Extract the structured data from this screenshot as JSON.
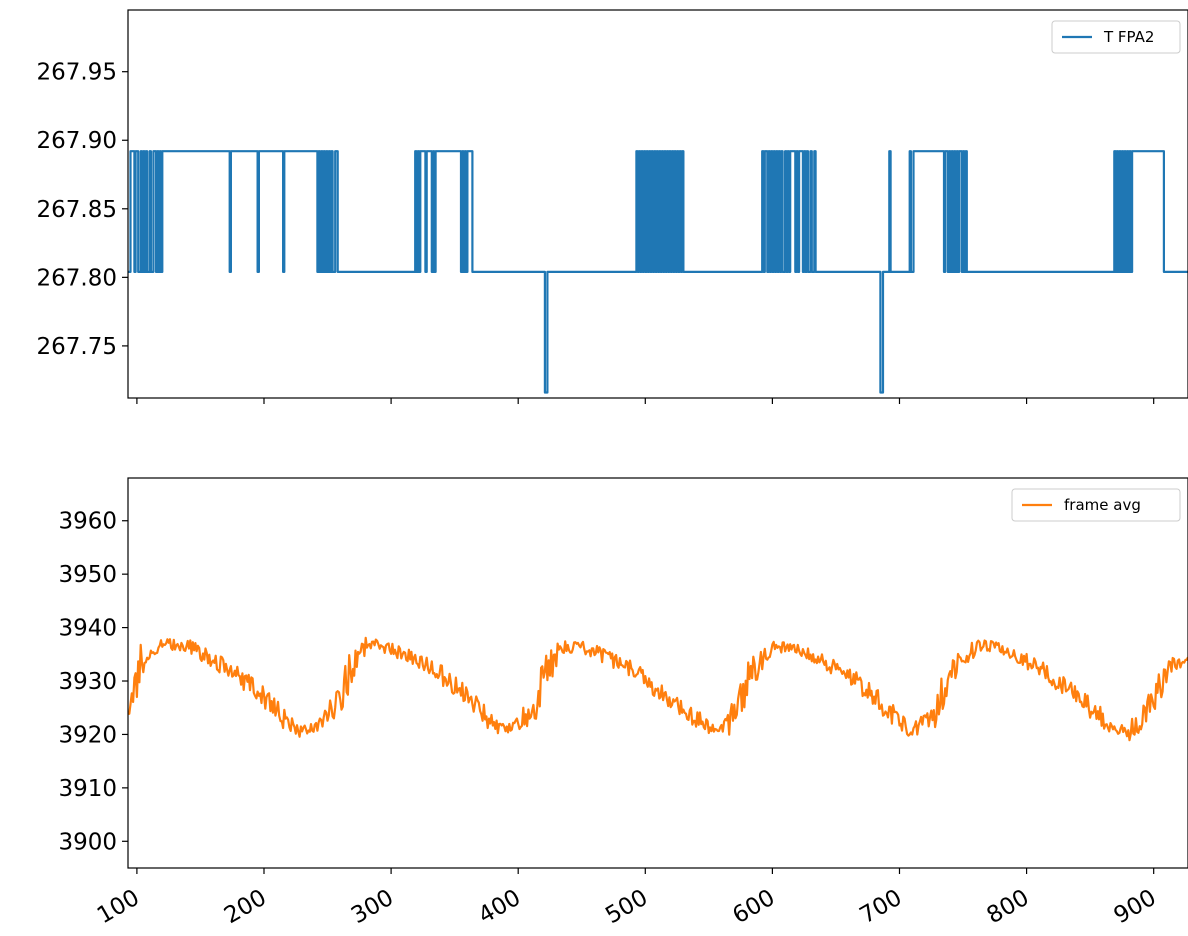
{
  "chart_data": [
    {
      "type": "line",
      "title": "",
      "xlabel": "",
      "ylabel": "",
      "xlim": [
        93,
        927
      ],
      "ylim": [
        267.712,
        267.995
      ],
      "yticks": [
        267.75,
        267.8,
        267.85,
        267.9,
        267.95
      ],
      "ytick_labels": [
        "267.75",
        "267.80",
        "267.85",
        "267.90",
        "267.95"
      ],
      "xticks": [
        100,
        200,
        300,
        400,
        500,
        600,
        700,
        800,
        900
      ],
      "show_x_tick_labels": false,
      "grid": false,
      "legend": "top-right",
      "series": [
        {
          "name": "T FPA2",
          "color": "#1f77b4",
          "levels": [
            267.716,
            267.804,
            267.892
          ],
          "x_start": 93,
          "x_end": 927,
          "segments": [
            [
              93,
              1
            ],
            [
              95,
              2
            ],
            [
              98,
              1
            ],
            [
              99,
              2
            ],
            [
              101,
              1
            ],
            [
              103,
              2
            ],
            [
              104,
              1
            ],
            [
              105,
              2
            ],
            [
              106,
              1
            ],
            [
              107,
              2
            ],
            [
              108,
              1
            ],
            [
              110,
              2
            ],
            [
              111,
              1
            ],
            [
              113,
              2
            ],
            [
              115,
              1
            ],
            [
              116,
              2
            ],
            [
              117,
              1
            ],
            [
              118,
              2
            ],
            [
              119,
              1
            ],
            [
              120,
              2
            ],
            [
              173,
              1
            ],
            [
              174,
              2
            ],
            [
              195,
              1
            ],
            [
              196,
              2
            ],
            [
              215,
              1
            ],
            [
              216,
              2
            ],
            [
              242,
              1
            ],
            [
              243,
              2
            ],
            [
              244,
              1
            ],
            [
              245,
              2
            ],
            [
              246,
              1
            ],
            [
              247,
              2
            ],
            [
              248,
              1
            ],
            [
              249,
              2
            ],
            [
              250,
              1
            ],
            [
              251,
              2
            ],
            [
              252,
              1
            ],
            [
              253,
              2
            ],
            [
              254,
              1
            ],
            [
              256,
              2
            ],
            [
              258,
              1
            ],
            [
              319,
              2
            ],
            [
              320,
              1
            ],
            [
              321,
              2
            ],
            [
              322,
              1
            ],
            [
              323,
              2
            ],
            [
              327,
              1
            ],
            [
              328,
              2
            ],
            [
              332,
              1
            ],
            [
              333,
              2
            ],
            [
              334,
              1
            ],
            [
              335,
              2
            ],
            [
              355,
              1
            ],
            [
              356,
              2
            ],
            [
              357,
              1
            ],
            [
              358,
              2
            ],
            [
              359,
              1
            ],
            [
              360,
              2
            ],
            [
              364,
              1
            ],
            [
              421,
              0
            ],
            [
              423,
              1
            ],
            [
              493,
              2
            ],
            [
              494,
              1
            ],
            [
              495,
              2
            ],
            [
              496,
              1
            ],
            [
              497,
              2
            ],
            [
              498,
              1
            ],
            [
              499,
              2
            ],
            [
              500,
              1
            ],
            [
              501,
              2
            ],
            [
              502,
              1
            ],
            [
              503,
              2
            ],
            [
              504,
              1
            ],
            [
              505,
              2
            ],
            [
              506,
              1
            ],
            [
              507,
              2
            ],
            [
              508,
              1
            ],
            [
              509,
              2
            ],
            [
              510,
              1
            ],
            [
              511,
              2
            ],
            [
              512,
              1
            ],
            [
              513,
              2
            ],
            [
              514,
              1
            ],
            [
              515,
              2
            ],
            [
              516,
              1
            ],
            [
              517,
              2
            ],
            [
              518,
              1
            ],
            [
              519,
              2
            ],
            [
              520,
              1
            ],
            [
              521,
              2
            ],
            [
              522,
              1
            ],
            [
              523,
              2
            ],
            [
              524,
              1
            ],
            [
              525,
              2
            ],
            [
              526,
              1
            ],
            [
              527,
              2
            ],
            [
              528,
              1
            ],
            [
              529,
              2
            ],
            [
              530,
              1
            ],
            [
              592,
              2
            ],
            [
              593,
              1
            ],
            [
              594,
              2
            ],
            [
              596,
              1
            ],
            [
              597,
              2
            ],
            [
              598,
              1
            ],
            [
              599,
              2
            ],
            [
              600,
              1
            ],
            [
              601,
              2
            ],
            [
              602,
              1
            ],
            [
              603,
              2
            ],
            [
              604,
              1
            ],
            [
              605,
              2
            ],
            [
              606,
              1
            ],
            [
              607,
              2
            ],
            [
              608,
              1
            ],
            [
              610,
              2
            ],
            [
              611,
              1
            ],
            [
              612,
              2
            ],
            [
              613,
              1
            ],
            [
              614,
              2
            ],
            [
              618,
              1
            ],
            [
              619,
              2
            ],
            [
              620,
              1
            ],
            [
              621,
              2
            ],
            [
              624,
              1
            ],
            [
              625,
              2
            ],
            [
              626,
              1
            ],
            [
              627,
              2
            ],
            [
              628,
              1
            ],
            [
              630,
              2
            ],
            [
              631,
              1
            ],
            [
              633,
              2
            ],
            [
              634,
              1
            ],
            [
              685,
              0
            ],
            [
              687,
              1
            ],
            [
              692,
              2
            ],
            [
              693,
              1
            ],
            [
              708,
              2
            ],
            [
              709,
              1
            ],
            [
              711,
              2
            ],
            [
              735,
              1
            ],
            [
              736,
              2
            ],
            [
              738,
              1
            ],
            [
              739,
              2
            ],
            [
              740,
              1
            ],
            [
              741,
              2
            ],
            [
              742,
              1
            ],
            [
              743,
              2
            ],
            [
              744,
              1
            ],
            [
              745,
              2
            ],
            [
              746,
              1
            ],
            [
              747,
              2
            ],
            [
              749,
              1
            ],
            [
              750,
              2
            ],
            [
              751,
              1
            ],
            [
              752,
              2
            ],
            [
              753,
              1
            ],
            [
              869,
              2
            ],
            [
              870,
              1
            ],
            [
              871,
              2
            ],
            [
              872,
              1
            ],
            [
              873,
              2
            ],
            [
              874,
              1
            ],
            [
              875,
              2
            ],
            [
              876,
              1
            ],
            [
              877,
              2
            ],
            [
              878,
              1
            ],
            [
              879,
              2
            ],
            [
              880,
              1
            ],
            [
              881,
              2
            ],
            [
              882,
              1
            ],
            [
              883,
              2
            ],
            [
              908,
              1
            ]
          ]
        }
      ]
    },
    {
      "type": "line",
      "title": "",
      "xlabel": "",
      "ylabel": "",
      "xlim": [
        93,
        927
      ],
      "ylim": [
        3895,
        3968
      ],
      "yticks": [
        3900,
        3910,
        3920,
        3930,
        3940,
        3950,
        3960
      ],
      "ytick_labels": [
        "3900",
        "3910",
        "3920",
        "3930",
        "3940",
        "3950",
        "3960"
      ],
      "xticks": [
        100,
        200,
        300,
        400,
        500,
        600,
        700,
        800,
        900
      ],
      "xtick_labels": [
        "100",
        "200",
        "300",
        "400",
        "500",
        "600",
        "700",
        "800",
        "900"
      ],
      "xtick_rotation_deg": 30,
      "grid": false,
      "legend": "top-right",
      "series": [
        {
          "name": "frame avg",
          "color": "#ff7f0e",
          "noise_amplitude": 2.5,
          "x_step": 1,
          "x_start": 93,
          "x_end": 927,
          "envelope": [
            [
              93,
              3926
            ],
            [
              98,
              3929
            ],
            [
              103,
              3933
            ],
            [
              110,
              3936
            ],
            [
              120,
              3937
            ],
            [
              140,
              3936.5
            ],
            [
              160,
              3934
            ],
            [
              180,
              3931
            ],
            [
              200,
              3927
            ],
            [
              215,
              3923
            ],
            [
              230,
              3920.5
            ],
            [
              245,
              3922
            ],
            [
              260,
              3927
            ],
            [
              270,
              3933
            ],
            [
              280,
              3937
            ],
            [
              290,
              3937
            ],
            [
              310,
              3935
            ],
            [
              330,
              3933
            ],
            [
              350,
              3929
            ],
            [
              370,
              3925
            ],
            [
              385,
              3921
            ],
            [
              400,
              3921.5
            ],
            [
              412,
              3925
            ],
            [
              425,
              3933
            ],
            [
              435,
              3936
            ],
            [
              450,
              3936.5
            ],
            [
              470,
              3934.5
            ],
            [
              490,
              3932
            ],
            [
              510,
              3928
            ],
            [
              530,
              3925
            ],
            [
              550,
              3921
            ],
            [
              563,
              3921
            ],
            [
              575,
              3926
            ],
            [
              585,
              3932
            ],
            [
              593,
              3935
            ],
            [
              600,
              3936.5
            ],
            [
              620,
              3936
            ],
            [
              640,
              3933.5
            ],
            [
              660,
              3931
            ],
            [
              680,
              3927
            ],
            [
              700,
              3922.5
            ],
            [
              710,
              3920.5
            ],
            [
              725,
              3923
            ],
            [
              740,
              3931
            ],
            [
              752,
              3935
            ],
            [
              765,
              3937
            ],
            [
              790,
              3935
            ],
            [
              810,
              3932.5
            ],
            [
              830,
              3929
            ],
            [
              850,
              3925
            ],
            [
              870,
              3921
            ],
            [
              880,
              3920
            ],
            [
              892,
              3924
            ],
            [
              904,
              3928
            ],
            [
              912,
              3933
            ],
            [
              927,
              3934
            ]
          ]
        }
      ]
    }
  ]
}
